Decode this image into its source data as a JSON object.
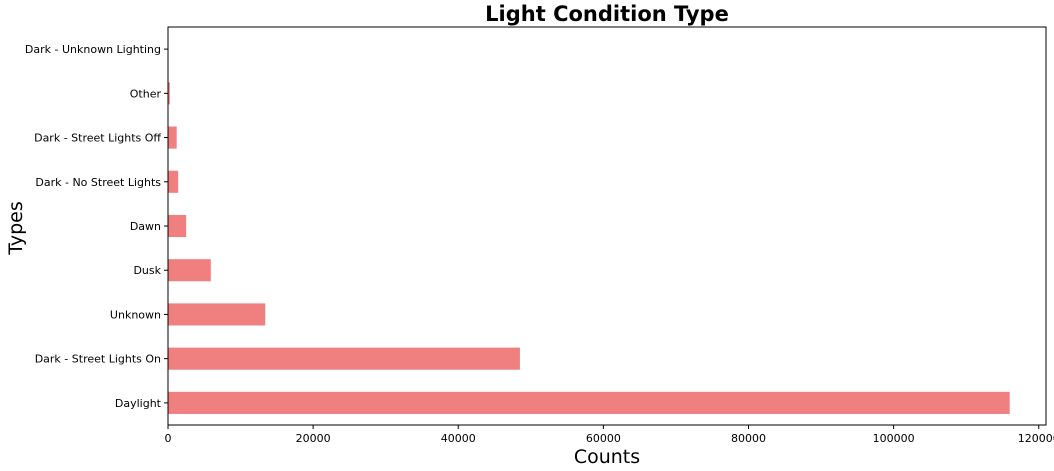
{
  "chart_data": {
    "type": "bar",
    "orientation": "horizontal",
    "title": "Light Condition Type",
    "xlabel": "Counts",
    "ylabel": "Types",
    "categories": [
      "Daylight",
      "Dark - Street Lights On",
      "Unknown",
      "Dusk",
      "Dawn",
      "Dark - No Street Lights",
      "Dark - Street Lights Off",
      "Other",
      "Dark - Unknown Lighting"
    ],
    "values": [
      116000,
      48500,
      13400,
      5900,
      2500,
      1400,
      1200,
      250,
      40
    ],
    "xlim": [
      0,
      121000
    ],
    "xticks": [
      0,
      20000,
      40000,
      60000,
      80000,
      100000,
      120000
    ],
    "bar_color": "#f08080",
    "grid": false,
    "legend": "none"
  }
}
